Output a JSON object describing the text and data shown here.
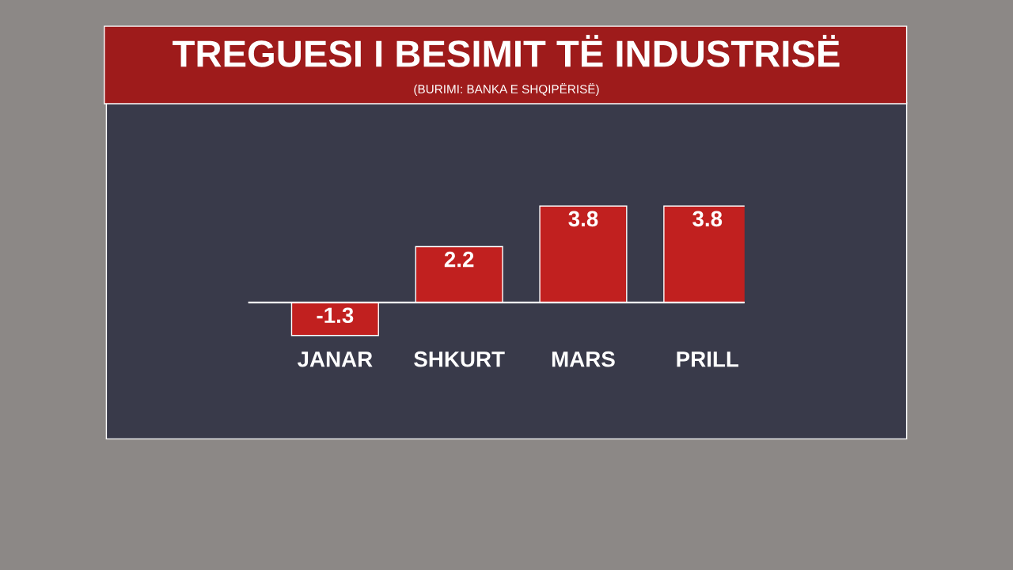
{
  "chart_data": {
    "type": "bar",
    "title": "TREGUESI I BESIMIT TË INDUSTRISË",
    "subtitle": "(BURIMI: BANKA E SHQIPËRISË)",
    "categories": [
      "JANAR",
      "SHKURT",
      "MARS",
      "PRILL"
    ],
    "values": [
      -1.3,
      2.2,
      3.8,
      3.8
    ],
    "color": "#c1201f",
    "data_labels": true
  }
}
